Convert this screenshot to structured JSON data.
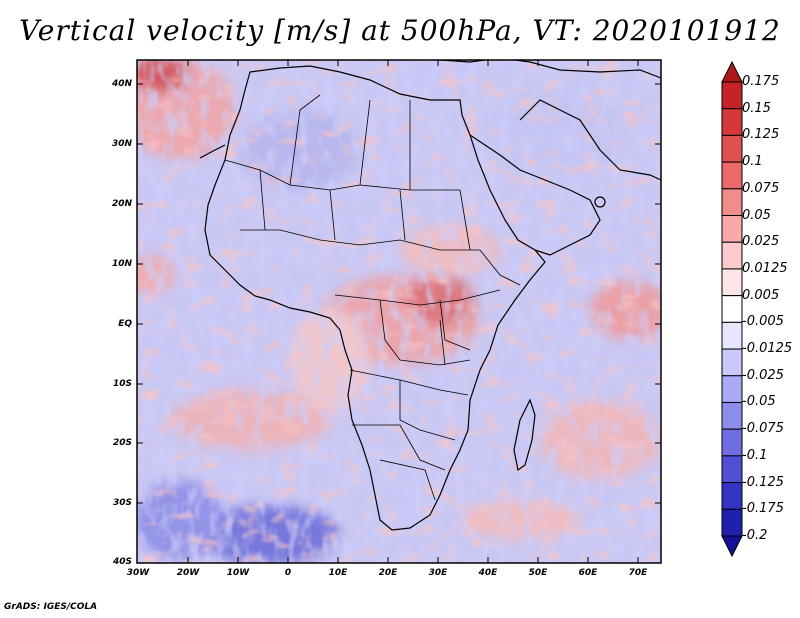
{
  "title": "Vertical velocity [m/s] at 500hPa, VT: 2020101912",
  "footer": "GrADS: IGES/COLA",
  "lat_labels": [
    "40N",
    "30N",
    "20N",
    "10N",
    "EQ",
    "10S",
    "20S",
    "30S",
    "40S"
  ],
  "lon_labels": [
    "30W",
    "20W",
    "10W",
    "0",
    "10E",
    "20E",
    "30E",
    "40E",
    "50E",
    "60E",
    "70E"
  ],
  "colorbar": {
    "labels": [
      "0.175",
      "0.15",
      "0.125",
      "0.1",
      "0.075",
      "0.05",
      "0.025",
      "0.0125",
      "0.005",
      "-0.005",
      "-0.0125",
      "-0.025",
      "-0.05",
      "-0.075",
      "-0.1",
      "-0.125",
      "-0.175",
      "-0.2"
    ],
    "colors": [
      "#b01818",
      "#c42424",
      "#d43838",
      "#e05050",
      "#ea6a6a",
      "#f28c8c",
      "#f8aaaa",
      "#fccaca",
      "#ffe6e6",
      "#ffffff",
      "#e6e6ff",
      "#c8c8fa",
      "#aaaaf4",
      "#8c8cec",
      "#6e6ee2",
      "#5050d6",
      "#3434c4",
      "#2020ae",
      "#121296"
    ]
  },
  "chart_data": {
    "type": "heatmap",
    "title": "Vertical velocity [m/s] at 500hPa, VT: 2020101912",
    "variable": "Vertical velocity",
    "units": "m/s",
    "level": "500hPa",
    "valid_time": "2020101912",
    "lon_range": [
      "30W",
      "75E"
    ],
    "lat_range": [
      "40S",
      "45N"
    ],
    "contour_levels": [
      -0.2,
      -0.175,
      -0.125,
      -0.1,
      -0.075,
      -0.05,
      -0.025,
      -0.0125,
      -0.005,
      0.005,
      0.0125,
      0.025,
      0.05,
      0.075,
      0.1,
      0.125,
      0.15,
      0.175
    ]
  }
}
